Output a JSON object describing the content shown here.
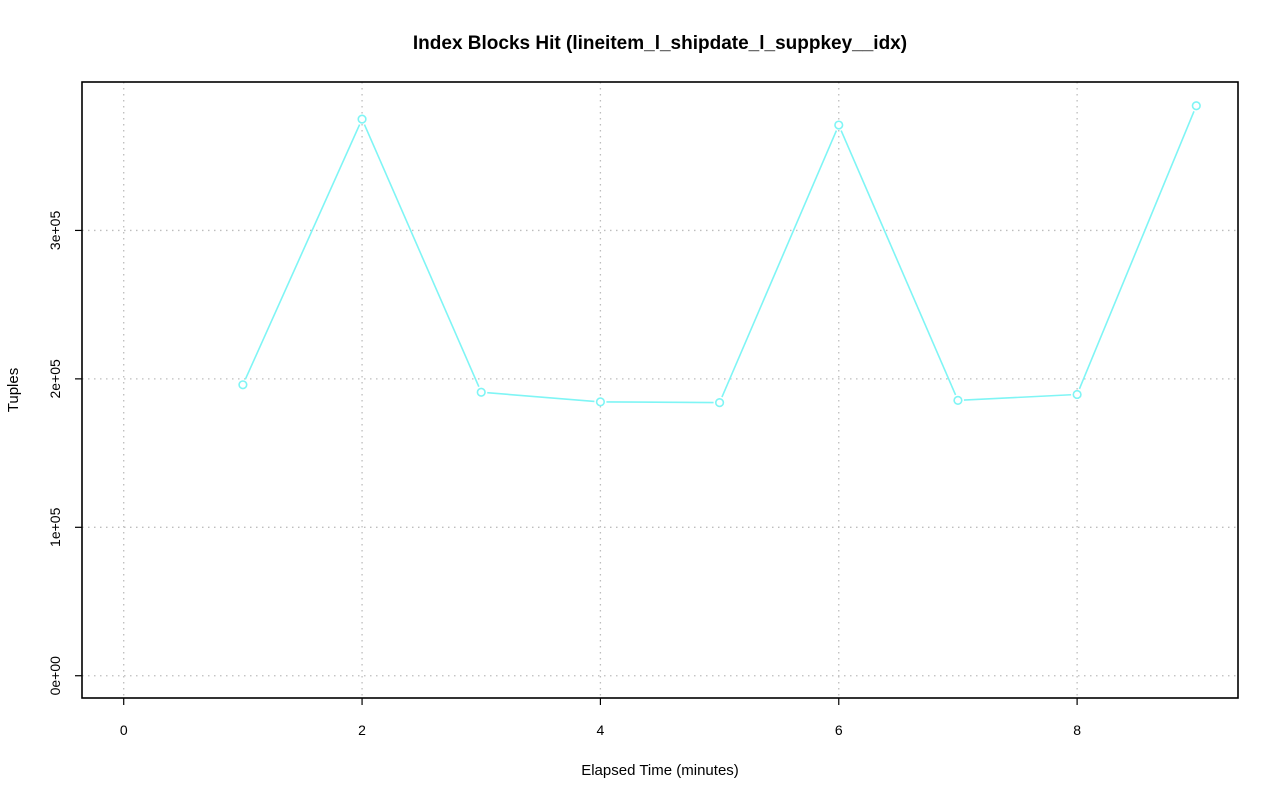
{
  "chart_data": {
    "type": "line",
    "title": "Index Blocks Hit (lineitem_l_shipdate_l_suppkey__idx)",
    "xlabel": "Elapsed Time (minutes)",
    "ylabel": "Tuples",
    "xlim": [
      -0.35,
      9.35
    ],
    "ylim": [
      -15000,
      400000
    ],
    "x_ticks": [
      0,
      2,
      4,
      6,
      8
    ],
    "x_tick_labels": [
      "0",
      "2",
      "4",
      "6",
      "8"
    ],
    "y_ticks": [
      0,
      100000,
      200000,
      300000
    ],
    "y_tick_labels": [
      "0e+00",
      "1e+05",
      "2e+05",
      "3e+05"
    ],
    "grid": true,
    "series": [
      {
        "color": "#7ff5f5",
        "x": [
          1,
          2,
          3,
          4,
          5,
          6,
          7,
          8,
          9
        ],
        "y": [
          196000,
          375000,
          191000,
          184500,
          184000,
          371000,
          185500,
          189500,
          384000
        ]
      }
    ]
  }
}
